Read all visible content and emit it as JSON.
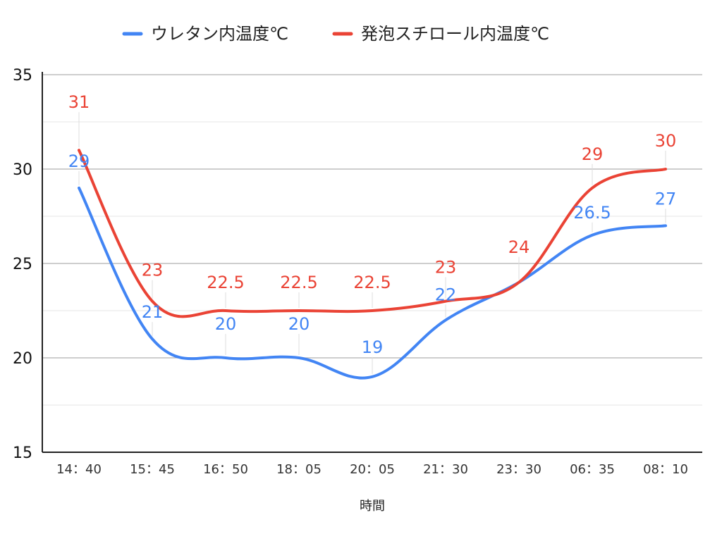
{
  "chart_data": {
    "type": "line",
    "title": "",
    "xlabel": "時間",
    "ylabel": "",
    "ylim": [
      15,
      35
    ],
    "yticks": [
      15,
      20,
      25,
      30,
      35
    ],
    "grid": true,
    "legend_position": "top",
    "categories": [
      "14：40",
      "15：45",
      "16：50",
      "18：05",
      "20：05",
      "21：30",
      "23：30",
      "06：35",
      "08：10"
    ],
    "series": [
      {
        "name": "ウレタン内温度℃",
        "color": "#4285f4",
        "values": [
          29,
          21,
          20,
          20,
          19,
          22,
          24,
          26.5,
          27
        ],
        "labels": [
          "29",
          "21",
          "20",
          "20",
          "19",
          "22",
          "",
          "26.5",
          "27"
        ]
      },
      {
        "name": "発泡スチロール内温度℃",
        "color": "#ea4335",
        "values": [
          31,
          23,
          22.5,
          22.5,
          22.5,
          23,
          24,
          29,
          30
        ],
        "labels": [
          "31",
          "23",
          "22.5",
          "22.5",
          "22.5",
          "23",
          "24",
          "29",
          "30"
        ]
      }
    ]
  }
}
